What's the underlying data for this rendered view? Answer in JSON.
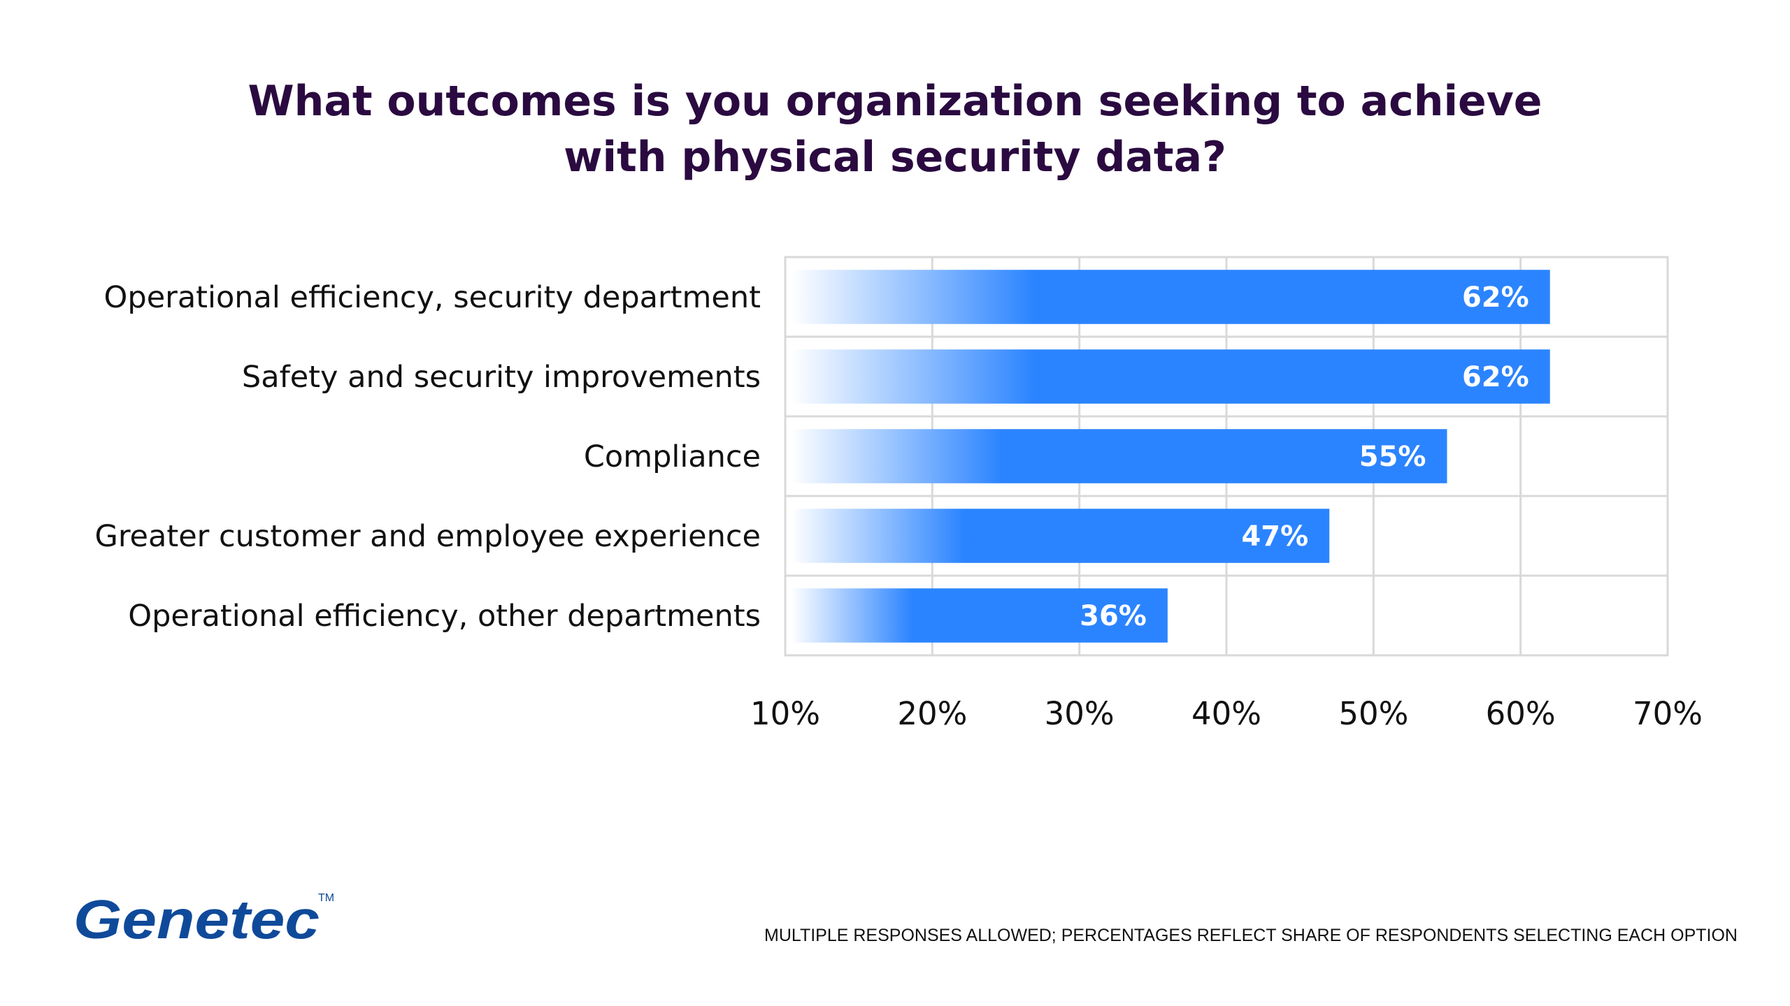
{
  "title": {
    "line1": "What outcomes is you organization seeking to achieve",
    "line2": "with physical security data?"
  },
  "footnote": "MULTIPLE RESPONSES ALLOWED; PERCENTAGES REFLECT SHARE OF RESPONDENTS SELECTING EACH OPTION",
  "logo": {
    "text": "Genetec",
    "tm": "TM"
  },
  "colors": {
    "bar": "#2b84ff",
    "bar_fade": "#ffffff",
    "title": "#2a0a40",
    "grid": "#d9d9d9",
    "logo": "#0f4a9a"
  },
  "chart_data": {
    "type": "bar",
    "orientation": "horizontal",
    "categories": [
      "Operational efficiency, security department",
      "Safety and security improvements",
      "Compliance",
      "Greater customer and employee experience",
      "Operational efficiency, other departments"
    ],
    "values": [
      62,
      62,
      55,
      47,
      36
    ],
    "value_labels": [
      "62%",
      "62%",
      "55%",
      "47%",
      "36%"
    ],
    "title": "What outcomes is you organization seeking to achieve with physical security data?",
    "xlim": [
      10,
      70
    ],
    "xticks": [
      10,
      20,
      30,
      40,
      50,
      60,
      70
    ],
    "xtick_labels": [
      "10%",
      "20%",
      "30%",
      "40%",
      "50%",
      "60%",
      "70%"
    ],
    "grid": true,
    "legend": "none"
  }
}
